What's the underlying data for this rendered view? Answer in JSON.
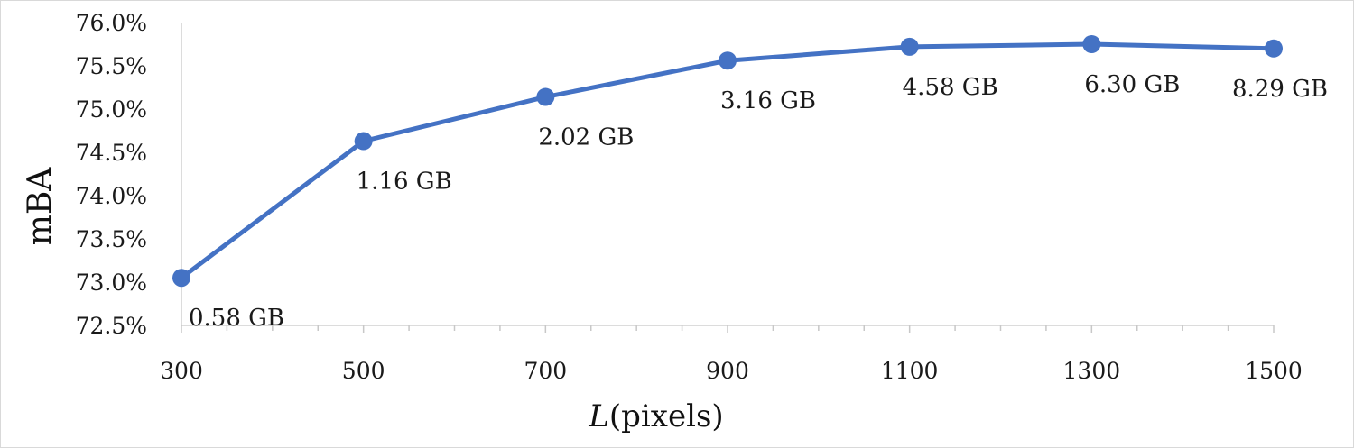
{
  "chart_data": {
    "type": "line",
    "title": "",
    "xlabel_var": "L",
    "xlabel_rest": "(pixels)",
    "ylabel": "mBA",
    "x": [
      300,
      500,
      700,
      900,
      1100,
      1300,
      1500
    ],
    "xticks": [
      "300",
      "500",
      "700",
      "900",
      "1100",
      "1300",
      "1500"
    ],
    "xlim": [
      300,
      1500
    ],
    "yticks": [
      "72.5%",
      "73.0%",
      "73.5%",
      "74.0%",
      "74.5%",
      "75.0%",
      "75.5%",
      "76.0%"
    ],
    "ytick_values": [
      72.5,
      73.0,
      73.5,
      74.0,
      74.5,
      75.0,
      75.5,
      76.0
    ],
    "ylim": [
      72.5,
      76.0
    ],
    "series": [
      {
        "values": [
          73.05,
          74.63,
          75.14,
          75.56,
          75.72,
          75.75,
          75.7
        ],
        "labels": [
          "0.58 GB",
          "1.16 GB",
          "2.02 GB",
          "3.16 GB",
          "4.58 GB",
          "6.30 GB",
          "8.29 GB"
        ],
        "color": "#4472c4"
      }
    ],
    "grid": false,
    "legend": "none"
  }
}
